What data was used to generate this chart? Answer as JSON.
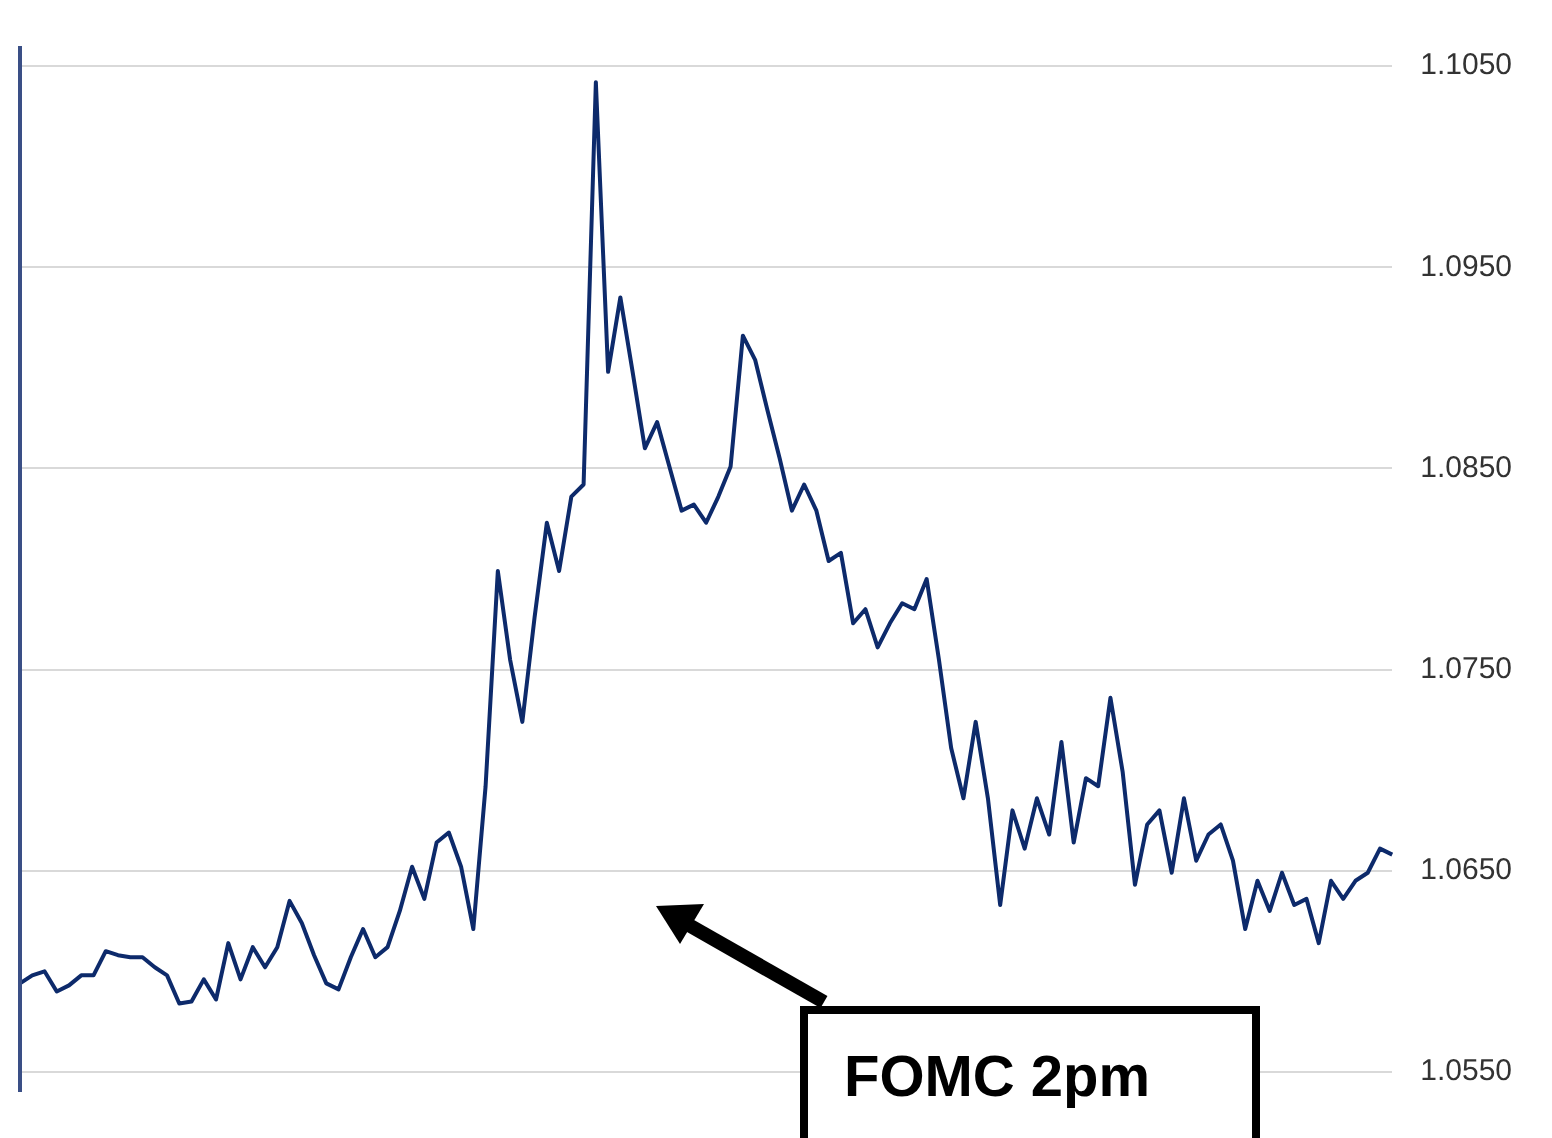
{
  "chart_data": {
    "type": "line",
    "categories": [
      null,
      null,
      null,
      null,
      null,
      null,
      null,
      null,
      null,
      null,
      null,
      null,
      null,
      null,
      null,
      null,
      null,
      null,
      null,
      null,
      null,
      null,
      null,
      null,
      null,
      null,
      null,
      null,
      null,
      null,
      null,
      null,
      null,
      null,
      null,
      null,
      null,
      null,
      null,
      null,
      null,
      null,
      null,
      null,
      null,
      null,
      null,
      null,
      null,
      null,
      null,
      null,
      null,
      null,
      null,
      null,
      null,
      null,
      null,
      null,
      null,
      null,
      null,
      null,
      null,
      null,
      null,
      null,
      null,
      null,
      null,
      null,
      null,
      null,
      null,
      null,
      null,
      null,
      null,
      null,
      null,
      null,
      null,
      null,
      null,
      null,
      null,
      null,
      null,
      null,
      null,
      null,
      null,
      null,
      null,
      null,
      null,
      null,
      null,
      null,
      null,
      null,
      null,
      null,
      null,
      null,
      null,
      null,
      null,
      null,
      null,
      null,
      null
    ],
    "series": [
      {
        "color": "#0d2a6b",
        "values": [
          1.0594,
          1.0598,
          1.06,
          1.059,
          1.0593,
          1.0598,
          1.0598,
          1.061,
          1.0608,
          1.0607,
          1.0607,
          1.0602,
          1.0598,
          1.0584,
          1.0585,
          1.0596,
          1.0586,
          1.0614,
          1.0596,
          1.0612,
          1.0602,
          1.0612,
          1.0635,
          1.0624,
          1.0608,
          1.0594,
          1.0591,
          1.0607,
          1.0621,
          1.0607,
          1.0612,
          1.063,
          1.0652,
          1.0636,
          1.0664,
          1.0669,
          1.0652,
          1.0621,
          1.0692,
          1.0799,
          1.0755,
          1.0724,
          1.0776,
          1.0823,
          1.0799,
          1.0836,
          1.0842,
          1.1042,
          1.0898,
          1.0935,
          1.0898,
          1.086,
          1.0873,
          1.0851,
          1.0829,
          1.0832,
          1.0823,
          1.0836,
          1.0851,
          1.0916,
          1.0904,
          1.0879,
          1.0855,
          1.0829,
          1.0842,
          1.0829,
          1.0804,
          1.0808,
          1.0773,
          1.078,
          1.0761,
          1.0773,
          1.0783,
          1.078,
          1.0795,
          1.0755,
          1.0711,
          1.0686,
          1.0724,
          1.0686,
          1.0633,
          1.068,
          1.0661,
          1.0686,
          1.0668,
          1.0714,
          1.0664,
          1.0696,
          1.0692,
          1.0736,
          1.0699,
          1.0643,
          1.0673,
          1.068,
          1.0649,
          1.0686,
          1.0655,
          1.0668,
          1.0673,
          1.0655,
          1.0621,
          1.0645,
          1.063,
          1.0649,
          1.0633,
          1.0636,
          1.0614,
          1.0645,
          1.0636,
          1.0645,
          1.0649,
          1.0661,
          1.0658
        ]
      }
    ],
    "ylim": [
      1.054,
      1.106
    ],
    "yticks": [
      {
        "value": 1.055,
        "label": "1.0550"
      },
      {
        "value": 1.065,
        "label": "1.0650"
      },
      {
        "value": 1.075,
        "label": "1.0750"
      },
      {
        "value": 1.085,
        "label": "1.0850"
      },
      {
        "value": 1.095,
        "label": "1.0950"
      },
      {
        "value": 1.105,
        "label": "1.1050"
      }
    ],
    "grid": "y",
    "tick_labels": "y",
    "annotations": [
      "FOMC 2pm"
    ]
  }
}
